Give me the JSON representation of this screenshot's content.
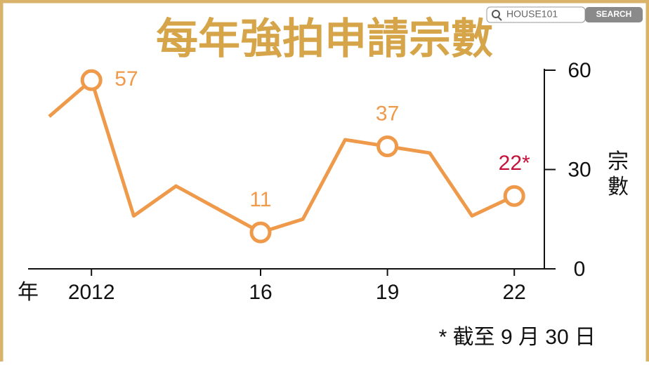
{
  "search": {
    "placeholder": "HOUSE101",
    "button": "SEARCH"
  },
  "chart_data": {
    "type": "line",
    "title": "每年強拍申請宗數",
    "categories": [
      null,
      "2012",
      null,
      null,
      null,
      "16",
      null,
      null,
      "19",
      null,
      null,
      "22"
    ],
    "xlabel": "年",
    "ylabel": "宗數",
    "series": [
      {
        "name": null,
        "color": "#ef9a4a",
        "values": [
          46,
          57,
          16,
          25,
          18,
          11,
          15,
          39,
          37,
          35,
          16,
          22
        ],
        "value_labels": [
          null,
          "57",
          null,
          null,
          null,
          "11",
          null,
          null,
          "37",
          null,
          null,
          "22*"
        ],
        "value_label_colors": [
          null,
          "#ef9a4a",
          null,
          null,
          null,
          "#ef9a4a",
          null,
          null,
          "#ef9a4a",
          null,
          null,
          "#c4123a"
        ]
      }
    ],
    "ylim": [
      0,
      60
    ],
    "yticks": [
      0,
      30,
      60
    ],
    "y_axis_side": "right",
    "footnote": "* 截至 9 月 30 日"
  }
}
